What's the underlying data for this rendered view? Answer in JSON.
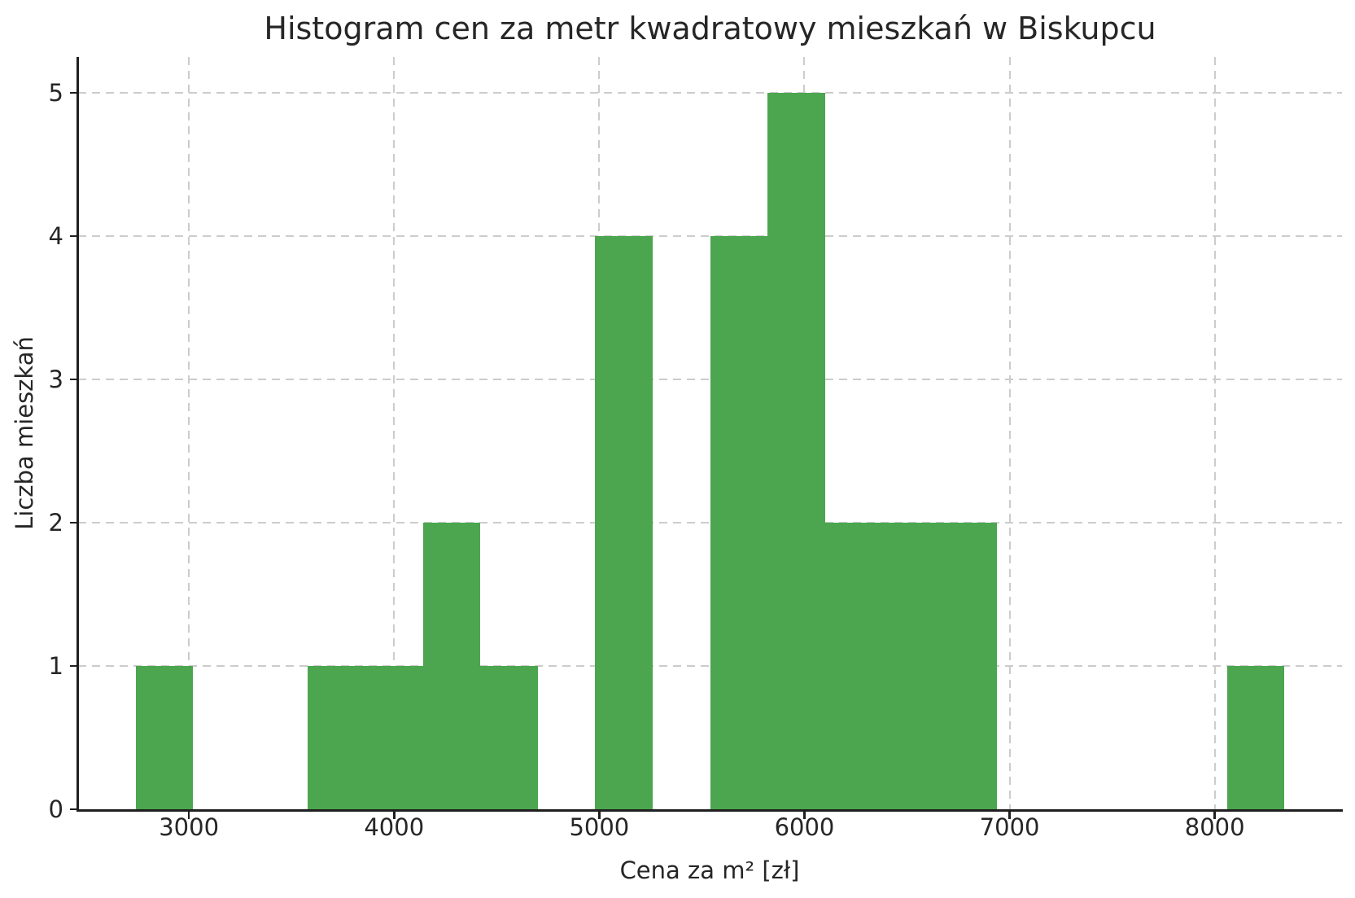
{
  "chart_data": {
    "type": "bar",
    "subtype": "histogram",
    "title": "Histogram cen za metr kwadratowy mieszkań w Biskupcu",
    "xlabel": "Cena za m² [zł]",
    "ylabel": "Liczba mieszkań",
    "bin_edges": [
      2740,
      3020,
      3300,
      3580,
      3860,
      4140,
      4420,
      4700,
      4980,
      5260,
      5540,
      5820,
      6100,
      6380,
      6660,
      6940,
      7220,
      7500,
      7780,
      8060,
      8340
    ],
    "counts": [
      1,
      0,
      0,
      1,
      1,
      2,
      1,
      0,
      4,
      0,
      4,
      5,
      2,
      2,
      2,
      0,
      0,
      0,
      0,
      1
    ],
    "total_count": 26,
    "x_ticks": [
      3000,
      4000,
      5000,
      6000,
      7000,
      8000
    ],
    "y_ticks": [
      0,
      1,
      2,
      3,
      4,
      5
    ],
    "xlim": [
      2460,
      8620
    ],
    "ylim": [
      0,
      5.25
    ],
    "grid": "dashed",
    "legend": "none",
    "colors": {
      "bar": "#4ba64f",
      "grid": "#cccccc",
      "spine": "#1f1f1f",
      "text": "#262626",
      "background": "#ffffff"
    }
  }
}
